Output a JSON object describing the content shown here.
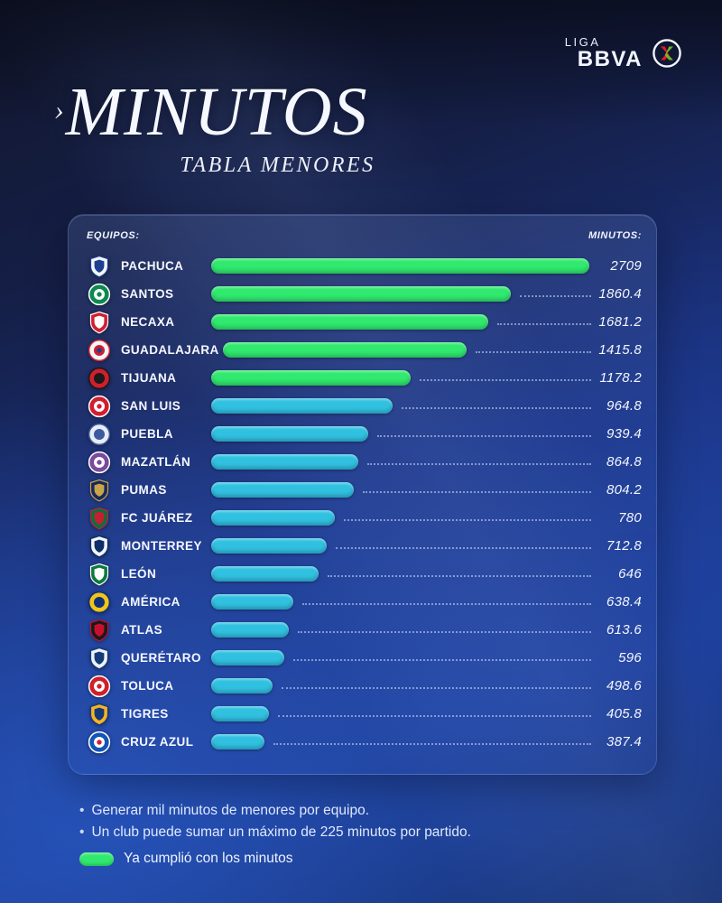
{
  "header": {
    "league_label": "LIGA",
    "brand": "BBVA"
  },
  "title": {
    "prefix": "›",
    "text": "MINUTOS",
    "subtitle": "TABLA MENORES"
  },
  "table": {
    "left_header": "EQUIPOS:",
    "right_header": "MINUTOS:"
  },
  "chart_data": {
    "type": "bar",
    "orientation": "horizontal",
    "title": "MINUTOS — TABLA MENORES",
    "xlabel": "MINUTOS",
    "x_max": 2709,
    "grid": false,
    "legend_position": "bottom-left",
    "bar_colors": {
      "fulfilled": "#30e96e",
      "pending": "#31c1e0"
    },
    "teams": [
      {
        "name": "PACHUCA",
        "value": 2709,
        "value_label": "2709",
        "fulfilled": true,
        "bar_pct": 100,
        "logo": {
          "shape": "shield",
          "bg": "#f2f5fa",
          "fg": "#1c3f8f"
        }
      },
      {
        "name": "SANTOS",
        "value": 1860.4,
        "value_label": "1860.4",
        "fulfilled": true,
        "bar_pct": 79.3,
        "logo": {
          "shape": "circle",
          "bg": "#0c8a50",
          "fg": "#ffffff",
          "accent": "#0c8a50"
        }
      },
      {
        "name": "NECAXA",
        "value": 1681.2,
        "value_label": "1681.2",
        "fulfilled": true,
        "bar_pct": 73.3,
        "logo": {
          "shape": "shield",
          "bg": "#d11f2f",
          "fg": "#ffffff"
        }
      },
      {
        "name": "GUADALAJARA",
        "value": 1415.8,
        "value_label": "1415.8",
        "fulfilled": true,
        "bar_pct": 66.5,
        "logo": {
          "shape": "circle",
          "bg": "#f2f5fa",
          "fg": "#cf1f2e",
          "accent": "#1c3f8f"
        }
      },
      {
        "name": "TIJUANA",
        "value": 1178.2,
        "value_label": "1178.2",
        "fulfilled": true,
        "bar_pct": 52.8,
        "logo": {
          "shape": "circle",
          "bg": "#cf1f2e",
          "fg": "#1a1a1a"
        }
      },
      {
        "name": "SAN LUIS",
        "value": 964.8,
        "value_label": "964.8",
        "fulfilled": false,
        "bar_pct": 47.9,
        "logo": {
          "shape": "circle",
          "bg": "#d11f2f",
          "fg": "#ffffff",
          "accent": "#d11f2f"
        }
      },
      {
        "name": "PUEBLA",
        "value": 939.4,
        "value_label": "939.4",
        "fulfilled": false,
        "bar_pct": 41.6,
        "logo": {
          "shape": "circle",
          "bg": "#e8edf5",
          "fg": "#3a5ba0"
        }
      },
      {
        "name": "MAZATLÁN",
        "value": 864.8,
        "value_label": "864.8",
        "fulfilled": false,
        "bar_pct": 38.8,
        "logo": {
          "shape": "circle",
          "bg": "#7a4a9d",
          "fg": "#ffffff",
          "accent": "#7a4a9d"
        }
      },
      {
        "name": "PUMAS",
        "value": 804.2,
        "value_label": "804.2",
        "fulfilled": false,
        "bar_pct": 37.7,
        "logo": {
          "shape": "shield",
          "bg": "#17295c",
          "fg": "#c9a44a"
        }
      },
      {
        "name": "FC JUÁREZ",
        "value": 780,
        "value_label": "780",
        "fulfilled": false,
        "bar_pct": 32.6,
        "logo": {
          "shape": "shield",
          "bg": "#0d6e3f",
          "fg": "#c42032"
        }
      },
      {
        "name": "MONTERREY",
        "value": 712.8,
        "value_label": "712.8",
        "fulfilled": false,
        "bar_pct": 30.5,
        "logo": {
          "shape": "shield",
          "bg": "#f2f5fa",
          "fg": "#0b2f66"
        }
      },
      {
        "name": "LEÓN",
        "value": 646,
        "value_label": "646",
        "fulfilled": false,
        "bar_pct": 28.4,
        "logo": {
          "shape": "shield",
          "bg": "#0c7a3c",
          "fg": "#ffffff"
        }
      },
      {
        "name": "AMÉRICA",
        "value": 638.4,
        "value_label": "638.4",
        "fulfilled": false,
        "bar_pct": 21.6,
        "logo": {
          "shape": "circle",
          "bg": "#f0c419",
          "fg": "#10307a"
        }
      },
      {
        "name": "ATLAS",
        "value": 613.6,
        "value_label": "613.6",
        "fulfilled": false,
        "bar_pct": 20.5,
        "logo": {
          "shape": "shield",
          "bg": "#1a1a1a",
          "fg": "#c8102e"
        }
      },
      {
        "name": "QUERÉTARO",
        "value": 596,
        "value_label": "596",
        "fulfilled": false,
        "bar_pct": 19.3,
        "logo": {
          "shape": "shield",
          "bg": "#eef2f8",
          "fg": "#143a7b"
        }
      },
      {
        "name": "TOLUCA",
        "value": 498.6,
        "value_label": "498.6",
        "fulfilled": false,
        "bar_pct": 16.3,
        "logo": {
          "shape": "circle",
          "bg": "#d0202a",
          "fg": "#ffffff",
          "accent": "#d0202a"
        }
      },
      {
        "name": "TIGRES",
        "value": 405.8,
        "value_label": "405.8",
        "fulfilled": false,
        "bar_pct": 15.3,
        "logo": {
          "shape": "shield",
          "bg": "#f5b325",
          "fg": "#123a7a"
        }
      },
      {
        "name": "CRUZ AZUL",
        "value": 387.4,
        "value_label": "387.4",
        "fulfilled": false,
        "bar_pct": 14.0,
        "logo": {
          "shape": "circle",
          "bg": "#1455b4",
          "fg": "#ffffff",
          "accent": "#d11f2f"
        }
      }
    ]
  },
  "footnotes": [
    "Generar mil minutos de menores por equipo.",
    "Un club puede sumar un máximo de 225 minutos por partido."
  ],
  "legend": {
    "label": "Ya cumplió con los minutos",
    "color": "#30e96e"
  }
}
